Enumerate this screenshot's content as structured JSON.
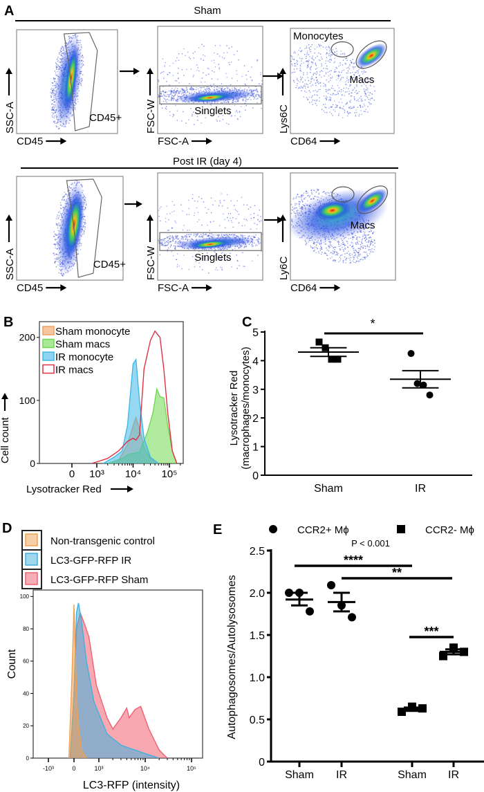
{
  "panel_a": {
    "label": "A",
    "rows": [
      {
        "title": "Sham",
        "plots": [
          {
            "xlabel": "CD45",
            "ylabel": "SSC-A",
            "gates": [
              "CD45+"
            ]
          },
          {
            "xlabel": "FSC-A",
            "ylabel": "FSC-W",
            "gates": [
              "Singlets"
            ]
          },
          {
            "xlabel": "CD64",
            "ylabel": "Lys6C",
            "gates": [
              "Monocytes",
              "Macs"
            ]
          }
        ]
      },
      {
        "title": "Post IR  (day 4)",
        "plots": [
          {
            "xlabel": "CD45",
            "ylabel": "SSC-A",
            "gates": [
              "CD45+"
            ]
          },
          {
            "xlabel": "FSC-A",
            "ylabel": "FSC-W",
            "gates": [
              "Singlets"
            ]
          },
          {
            "xlabel": "CD64",
            "ylabel": "Ly6C",
            "gates": [
              "Macs"
            ]
          }
        ]
      }
    ]
  },
  "chart_data": [
    {
      "panel": "B",
      "type": "area",
      "xlabel": "Lysotracker Red",
      "ylabel": "Cell count",
      "xticks": [
        "0",
        "10³",
        "10⁴",
        "10⁵"
      ],
      "xtick_values": [
        0,
        1000,
        10000,
        100000
      ],
      "yticks": [
        "0",
        "100",
        "200"
      ],
      "ylim": [
        0,
        225
      ],
      "legend": "top-left",
      "series": [
        {
          "name": "Sham monocyte",
          "color": "#f0a060",
          "fill": true,
          "points": [
            [
              2000,
              0
            ],
            [
              4000,
              5
            ],
            [
              7000,
              30
            ],
            [
              10000,
              60
            ],
            [
              12000,
              73
            ],
            [
              15000,
              55
            ],
            [
              20000,
              25
            ],
            [
              30000,
              8
            ],
            [
              50000,
              0
            ]
          ]
        },
        {
          "name": "Sham macs",
          "color": "#70d850",
          "fill": true,
          "points": [
            [
              2000,
              0
            ],
            [
              5000,
              8
            ],
            [
              8000,
              15
            ],
            [
              15000,
              18
            ],
            [
              25000,
              50
            ],
            [
              35000,
              80
            ],
            [
              45000,
              118
            ],
            [
              55000,
              106
            ],
            [
              70000,
              104
            ],
            [
              90000,
              60
            ],
            [
              120000,
              20
            ],
            [
              160000,
              0
            ]
          ]
        },
        {
          "name": "IR monocyte",
          "color": "#40b8e8",
          "fill": true,
          "points": [
            [
              1500,
              0
            ],
            [
              3000,
              10
            ],
            [
              5000,
              20
            ],
            [
              7000,
              60
            ],
            [
              10000,
              158
            ],
            [
              12000,
              165
            ],
            [
              15000,
              100
            ],
            [
              20000,
              40
            ],
            [
              30000,
              10
            ],
            [
              50000,
              0
            ]
          ]
        },
        {
          "name": "IR macs",
          "color": "#e03040",
          "fill": false,
          "points": [
            [
              800,
              0
            ],
            [
              2000,
              8
            ],
            [
              4000,
              20
            ],
            [
              7000,
              35
            ],
            [
              10000,
              40
            ],
            [
              12000,
              37
            ],
            [
              15000,
              45
            ],
            [
              20000,
              150
            ],
            [
              30000,
              195
            ],
            [
              40000,
              210
            ],
            [
              55000,
              200
            ],
            [
              70000,
              150
            ],
            [
              90000,
              80
            ],
            [
              120000,
              20
            ],
            [
              160000,
              0
            ]
          ]
        }
      ]
    },
    {
      "panel": "C",
      "type": "scatter",
      "ylabel": [
        "Lysotracker Red",
        "(macrophages/monocytes)"
      ],
      "categories": [
        "Sham",
        "IR"
      ],
      "ylim": [
        0,
        5
      ],
      "yticks": [
        "0",
        "1",
        "2",
        "3",
        "4",
        "5"
      ],
      "groups": [
        {
          "category": "Sham",
          "marker": "square",
          "values": [
            4.65,
            4.45,
            4.05,
            4.05
          ],
          "mean": 4.3,
          "sem": [
            4.15,
            4.45
          ]
        },
        {
          "category": "IR",
          "marker": "circle",
          "values": [
            4.25,
            3.2,
            3.15,
            2.8
          ],
          "mean": 3.35,
          "sem": [
            3.05,
            3.65
          ]
        }
      ],
      "significance": [
        {
          "from": "Sham",
          "to": "IR",
          "label": "*"
        }
      ]
    },
    {
      "panel": "D",
      "type": "area",
      "xlabel": "LC3-RFP (intensity)",
      "ylabel": "Count",
      "xticks": [
        "-10³",
        "0",
        "10³",
        "10⁴",
        "10⁵"
      ],
      "xtick_values": [
        -1000,
        0,
        1000,
        10000,
        100000
      ],
      "yticks": [
        "0",
        "20",
        "40",
        "60",
        "80",
        "100"
      ],
      "ylim": [
        0,
        104
      ],
      "legend": "top-outside",
      "series": [
        {
          "name": "LC3-GFP-RFP  Sham",
          "color": "#f06070",
          "fill": true,
          "points": [
            [
              -150,
              0
            ],
            [
              0,
              40
            ],
            [
              100,
              80
            ],
            [
              250,
              90
            ],
            [
              400,
              84
            ],
            [
              600,
              75
            ],
            [
              900,
              45
            ],
            [
              1500,
              25
            ],
            [
              2000,
              18
            ],
            [
              3000,
              25
            ],
            [
              4000,
              31
            ],
            [
              4500,
              25
            ],
            [
              6000,
              30
            ],
            [
              8000,
              32
            ],
            [
              12000,
              18
            ],
            [
              20000,
              5
            ],
            [
              30000,
              0
            ]
          ]
        },
        {
          "name": "LC3-GFP-RFP  IR",
          "color": "#40b0e0",
          "fill": true,
          "points": [
            [
              -150,
              0
            ],
            [
              0,
              40
            ],
            [
              100,
              90
            ],
            [
              180,
              96
            ],
            [
              300,
              85
            ],
            [
              500,
              60
            ],
            [
              800,
              35
            ],
            [
              1500,
              15
            ],
            [
              3000,
              8
            ],
            [
              6000,
              5
            ],
            [
              12000,
              2
            ],
            [
              20000,
              0
            ]
          ]
        },
        {
          "name": "Non-transgenic control",
          "color": "#f0a050",
          "fill": true,
          "points": [
            [
              -200,
              0
            ],
            [
              -80,
              50
            ],
            [
              0,
              95
            ],
            [
              60,
              60
            ],
            [
              150,
              25
            ],
            [
              300,
              5
            ],
            [
              500,
              0
            ]
          ]
        }
      ],
      "legend_order": [
        "Non-transgenic control",
        "LC3-GFP-RFP  IR",
        "LC3-GFP-RFP  Sham"
      ]
    },
    {
      "panel": "E",
      "type": "scatter",
      "ylabel": "Autophagosomes/Autolysosomes",
      "categories": [
        "Sham",
        "IR",
        "Sham",
        "IR"
      ],
      "ylim": [
        0,
        2.5
      ],
      "yticks": [
        "0",
        "0.5",
        "1.0",
        "1.5",
        "2.0",
        "2.5"
      ],
      "annotation": "P < 0.001",
      "legend": [
        {
          "name": "CCR2+ Mϕ",
          "marker": "circle"
        },
        {
          "name": "CCR2- Mϕ",
          "marker": "square"
        }
      ],
      "groups": [
        {
          "category_index": 0,
          "marker": "circle",
          "values": [
            2.0,
            2.0,
            1.78
          ],
          "mean": 1.92,
          "sem": [
            1.85,
            2.0
          ]
        },
        {
          "category_index": 1,
          "marker": "circle",
          "values": [
            2.09,
            1.85,
            1.71
          ],
          "mean": 1.89,
          "sem": [
            1.78,
            2.0
          ]
        },
        {
          "category_index": 2,
          "marker": "square",
          "values": [
            0.59,
            0.65,
            0.63
          ],
          "mean": 0.62,
          "sem": [
            0.6,
            0.64
          ]
        },
        {
          "category_index": 3,
          "marker": "square",
          "values": [
            1.25,
            1.35,
            1.3
          ],
          "mean": 1.3,
          "sem": [
            1.27,
            1.33
          ]
        }
      ],
      "significance": [
        {
          "from": 0,
          "to": 2,
          "label": "****"
        },
        {
          "from": 1,
          "to": 3,
          "label": "**"
        },
        {
          "from": 2,
          "to": 3,
          "label": "***"
        }
      ]
    }
  ]
}
